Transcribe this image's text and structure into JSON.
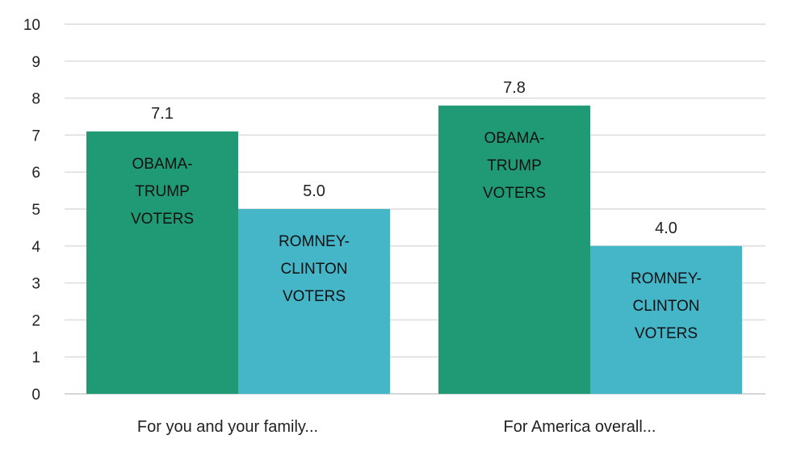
{
  "chart_data": {
    "type": "bar",
    "title": "",
    "xlabel": "",
    "ylabel": "",
    "ylim": [
      0,
      10
    ],
    "yticks": [
      "0",
      "1",
      "2",
      "3",
      "4",
      "5",
      "6",
      "7",
      "8",
      "9",
      "10"
    ],
    "grid": true,
    "categories": [
      "For you and your family...",
      "For America overall..."
    ],
    "series": [
      {
        "name": "OBAMA-TRUMP VOTERS",
        "label_lines": [
          "OBAMA-",
          "TRUMP",
          "VOTERS"
        ],
        "color": "#1f9a74",
        "values": [
          7.1,
          7.8
        ],
        "value_labels": [
          "7.1",
          "7.8"
        ]
      },
      {
        "name": "ROMNEY-CLINTON VOTERS",
        "label_lines": [
          "ROMNEY-",
          "CLINTON",
          "VOTERS"
        ],
        "color": "#45b5c8",
        "values": [
          5.0,
          4.0
        ],
        "value_labels": [
          "5.0",
          "4.0"
        ]
      }
    ]
  }
}
